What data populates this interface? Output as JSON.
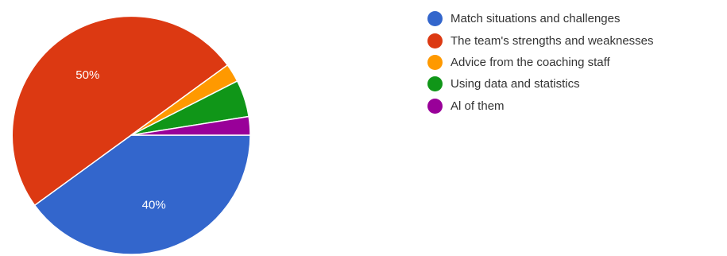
{
  "chart_data": {
    "type": "pie",
    "title": "",
    "legend_position": "right",
    "start_direction": "east",
    "slices": [
      {
        "label": "Match situations and challenges",
        "value": 40,
        "color": "#3366cc",
        "data_label": "40%"
      },
      {
        "label": "The team's strengths and weaknesses",
        "value": 50,
        "color": "#dc3912",
        "data_label": "50%"
      },
      {
        "label": "Advice from the coaching staff",
        "value": 2.5,
        "color": "#ff9900",
        "data_label": ""
      },
      {
        "label": "Using data and statistics",
        "value": 5,
        "color": "#109618",
        "data_label": ""
      },
      {
        "label": "Al of them",
        "value": 2.5,
        "color": "#990099",
        "data_label": ""
      }
    ]
  }
}
